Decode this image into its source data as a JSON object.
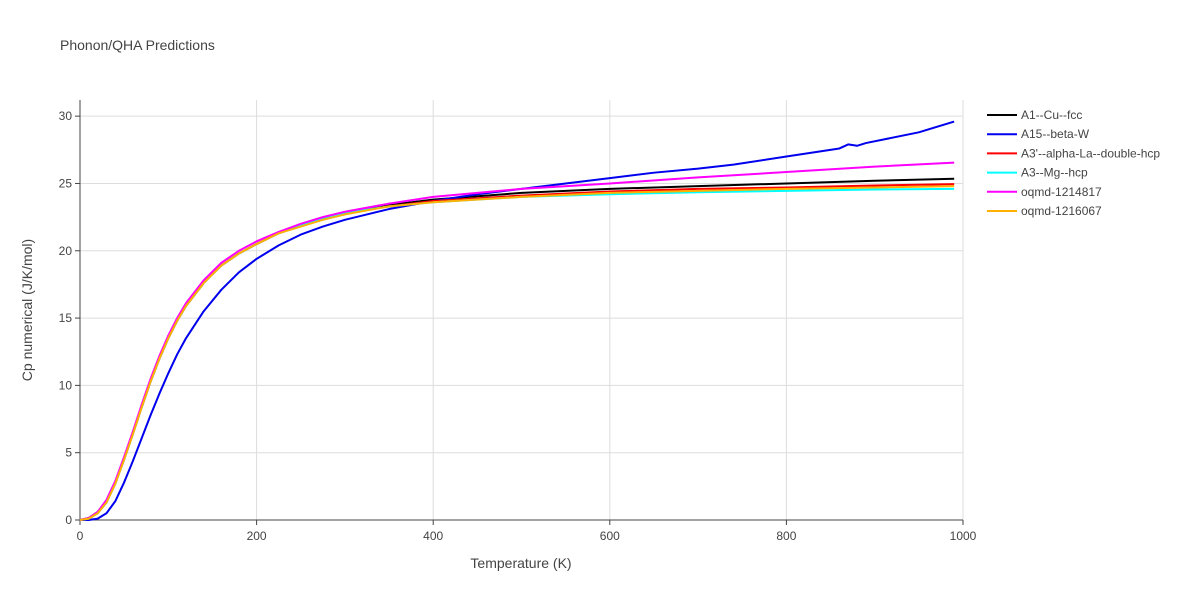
{
  "chart_data": {
    "type": "line",
    "title": "Phonon/QHA Predictions",
    "xlabel": "Temperature (K)",
    "ylabel": "Cp numerical (J/K/mol)",
    "xlim": [
      0,
      1000
    ],
    "ylim": [
      0,
      31.2
    ],
    "xticks": [
      0,
      200,
      400,
      600,
      800,
      1000
    ],
    "yticks": [
      0,
      5,
      10,
      15,
      20,
      25,
      30
    ],
    "grid": true,
    "legend_position": "top-right, outside plot",
    "series": [
      {
        "name": "A1--Cu--fcc",
        "color": "#000000",
        "x": [
          0,
          10,
          20,
          30,
          40,
          50,
          60,
          70,
          80,
          90,
          100,
          110,
          120,
          140,
          160,
          180,
          200,
          225,
          250,
          275,
          300,
          350,
          400,
          500,
          600,
          700,
          800,
          900,
          990
        ],
        "y": [
          0,
          0.15,
          0.6,
          1.4,
          2.8,
          4.6,
          6.5,
          8.4,
          10.3,
          12.0,
          13.5,
          14.8,
          15.9,
          17.6,
          18.9,
          19.8,
          20.5,
          21.3,
          21.9,
          22.4,
          22.8,
          23.4,
          23.8,
          24.3,
          24.6,
          24.8,
          25.0,
          25.2,
          25.35
        ]
      },
      {
        "name": "A15--beta-W",
        "color": "#0000ee",
        "x": [
          0,
          10,
          20,
          30,
          40,
          50,
          60,
          70,
          80,
          90,
          100,
          110,
          120,
          140,
          160,
          180,
          200,
          225,
          250,
          275,
          300,
          350,
          400,
          450,
          500,
          550,
          600,
          650,
          700,
          740,
          800,
          860,
          870,
          880,
          890,
          950,
          990
        ],
        "y": [
          0,
          0.0,
          0.1,
          0.5,
          1.4,
          2.8,
          4.4,
          6.1,
          7.8,
          9.4,
          10.9,
          12.3,
          13.5,
          15.5,
          17.1,
          18.4,
          19.4,
          20.4,
          21.2,
          21.8,
          22.3,
          23.1,
          23.7,
          24.2,
          24.6,
          25.0,
          25.4,
          25.8,
          26.1,
          26.4,
          27.0,
          27.6,
          27.9,
          27.8,
          28.0,
          28.8,
          29.6
        ]
      },
      {
        "name": "A3'--alpha-La--double-hcp",
        "color": "#ff0000",
        "x": [
          0,
          10,
          20,
          30,
          40,
          50,
          60,
          70,
          80,
          90,
          100,
          110,
          120,
          140,
          160,
          180,
          200,
          225,
          250,
          275,
          300,
          350,
          400,
          500,
          600,
          700,
          800,
          900,
          990
        ],
        "y": [
          0,
          0.1,
          0.5,
          1.3,
          2.7,
          4.5,
          6.4,
          8.4,
          10.3,
          12.0,
          13.5,
          14.8,
          15.9,
          17.6,
          18.9,
          19.8,
          20.5,
          21.3,
          21.9,
          22.4,
          22.8,
          23.3,
          23.7,
          24.1,
          24.4,
          24.6,
          24.7,
          24.85,
          24.95
        ]
      },
      {
        "name": "A3--Mg--hcp",
        "color": "#00ffff",
        "x": [
          0,
          10,
          20,
          30,
          40,
          50,
          60,
          70,
          80,
          90,
          100,
          110,
          120,
          140,
          160,
          180,
          200,
          225,
          250,
          275,
          300,
          350,
          400,
          500,
          600,
          700,
          800,
          900,
          990
        ],
        "y": [
          0,
          0.1,
          0.5,
          1.3,
          2.7,
          4.5,
          6.4,
          8.4,
          10.3,
          12.0,
          13.5,
          14.8,
          15.9,
          17.6,
          18.9,
          19.8,
          20.5,
          21.3,
          21.9,
          22.4,
          22.8,
          23.3,
          23.6,
          24.0,
          24.2,
          24.35,
          24.45,
          24.55,
          24.6
        ]
      },
      {
        "name": "oqmd-1214817",
        "color": "#ff00ff",
        "x": [
          0,
          10,
          20,
          30,
          40,
          50,
          60,
          70,
          80,
          90,
          100,
          110,
          120,
          140,
          160,
          180,
          200,
          225,
          250,
          275,
          300,
          350,
          400,
          450,
          500,
          600,
          700,
          800,
          900,
          990
        ],
        "y": [
          0,
          0.15,
          0.6,
          1.5,
          2.9,
          4.7,
          6.6,
          8.6,
          10.5,
          12.2,
          13.7,
          15.0,
          16.1,
          17.8,
          19.1,
          20.0,
          20.7,
          21.4,
          22.0,
          22.5,
          22.9,
          23.5,
          24.0,
          24.3,
          24.6,
          25.0,
          25.45,
          25.85,
          26.25,
          26.55
        ]
      },
      {
        "name": "oqmd-1216067",
        "color": "#ffb000",
        "x": [
          0,
          10,
          20,
          30,
          40,
          50,
          60,
          70,
          80,
          90,
          100,
          110,
          120,
          140,
          160,
          180,
          200,
          225,
          250,
          275,
          300,
          350,
          400,
          500,
          600,
          700,
          800,
          900,
          990
        ],
        "y": [
          0,
          0.1,
          0.5,
          1.3,
          2.7,
          4.5,
          6.4,
          8.4,
          10.3,
          12.0,
          13.5,
          14.8,
          15.9,
          17.6,
          18.9,
          19.8,
          20.5,
          21.3,
          21.8,
          22.3,
          22.7,
          23.3,
          23.6,
          24.0,
          24.3,
          24.45,
          24.6,
          24.7,
          24.8
        ]
      }
    ]
  }
}
